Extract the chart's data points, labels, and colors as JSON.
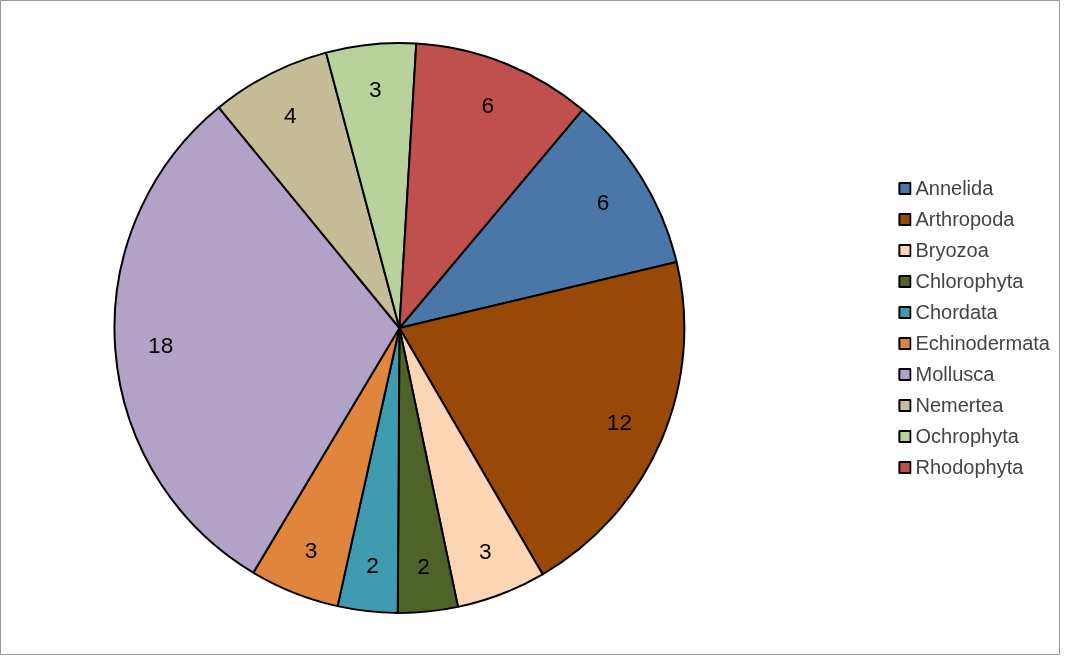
{
  "chart_data": {
    "type": "pie",
    "categories": [
      "Annelida",
      "Arthropoda",
      "Bryozoa",
      "Chlorophyta",
      "Chordata",
      "Echinodermata",
      "Mollusca",
      "Nemertea",
      "Ochrophyta",
      "Rhodophyta"
    ],
    "values": [
      6,
      12,
      3,
      2,
      2,
      3,
      18,
      4,
      3,
      6
    ],
    "colors": [
      "#4a76a8",
      "#984807",
      "#fcd5b5",
      "#4f6228",
      "#3e9bb0",
      "#e0853d",
      "#b3a2c7",
      "#c4bd97",
      "#b9d29b",
      "#c0504d"
    ],
    "data_labels": true,
    "legend": "right"
  }
}
